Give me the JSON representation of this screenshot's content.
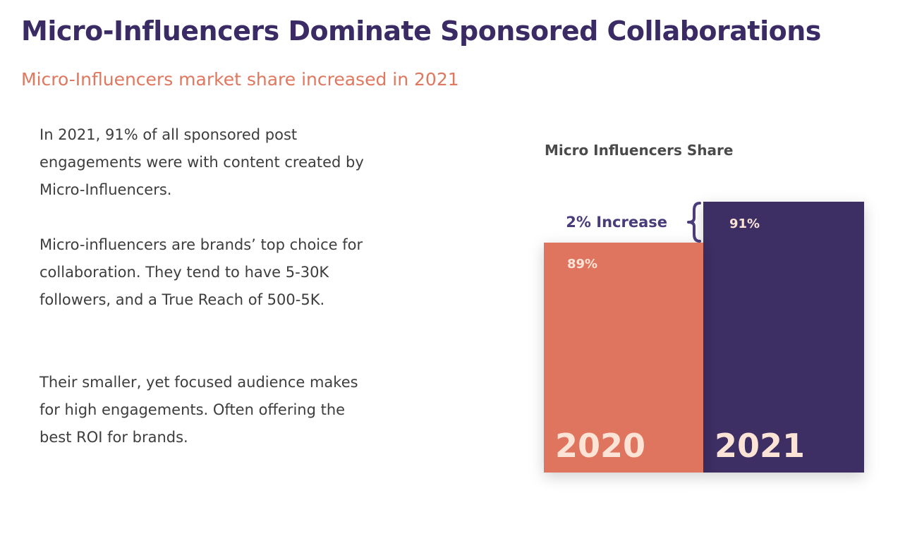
{
  "header": {
    "title": "Micro-Influencers Dominate Sponsored Collaborations",
    "subtitle": "Micro-Influencers market share increased in 2021"
  },
  "body": {
    "paragraphs": [
      "In 2021, 91% of all sponsored post engagements were with content created by Micro-Influencers.",
      "Micro-influencers are brands’ top choice for collaboration. They tend to have 5-30K followers, and a True Reach of 500-5K.",
      "Their smaller, yet focused audience makes for high engagements. Often offering the best ROI for brands."
    ]
  },
  "chart_data": {
    "type": "bar",
    "title": "Micro Influencers Share",
    "categories": [
      "2020",
      "2021"
    ],
    "values": [
      89,
      91
    ],
    "value_labels": [
      "89%",
      "91%"
    ],
    "annotation": "2% Increase",
    "colors": [
      "#e0755f",
      "#3d2d64"
    ],
    "ylim": [
      0,
      100
    ],
    "grid": false,
    "legend": "none"
  },
  "colors": {
    "title": "#3a2b65",
    "subtitle": "#e0775f",
    "text": "#3d3d3d",
    "bar_label": "#fbe3d6"
  }
}
